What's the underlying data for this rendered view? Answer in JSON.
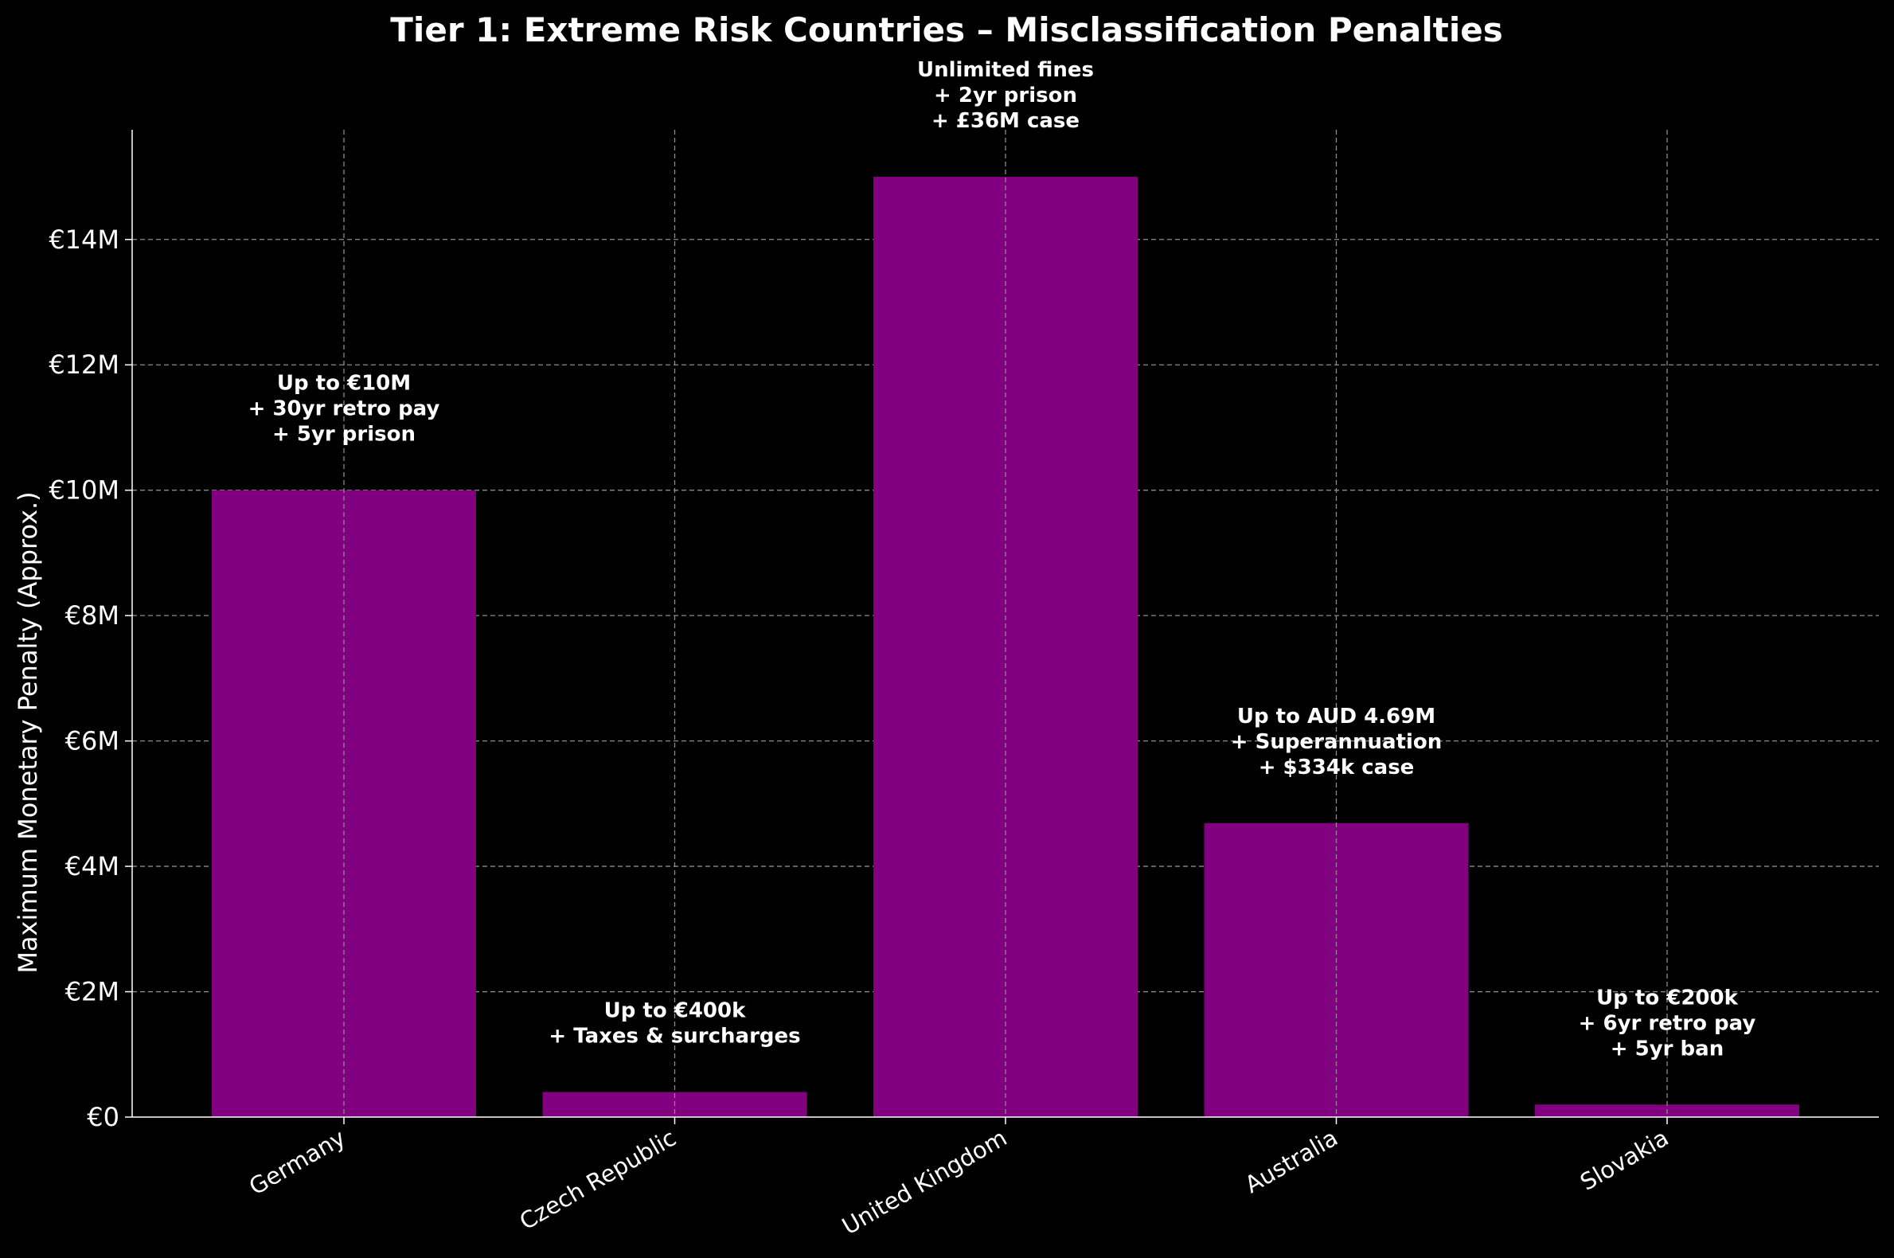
{
  "chart_data": {
    "type": "bar",
    "title": "Tier 1: Extreme Risk Countries – Misclassification Penalties",
    "xlabel": "",
    "ylabel": "Maximum Monetary Penalty (Approx.)",
    "categories": [
      "Germany",
      "Czech Republic",
      "United Kingdom",
      "Australia",
      "Slovakia"
    ],
    "values": [
      10000000,
      400000,
      15000000,
      4690000,
      200000
    ],
    "annotations": [
      [
        "Up to €10M",
        "+ 30yr retro pay",
        "+ 5yr prison"
      ],
      [
        "Up to €400k",
        "+ Taxes & surcharges"
      ],
      [
        "Unlimited fines",
        "+ 2yr prison",
        "+ £36M case"
      ],
      [
        "Up to AUD 4.69M",
        "+ Superannuation",
        "+ $334k case"
      ],
      [
        "Up to €200k",
        "+ 6yr retro pay",
        "+ 5yr ban"
      ]
    ],
    "ylim": [
      0,
      15750000
    ],
    "yticks": [
      0,
      2000000,
      4000000,
      6000000,
      8000000,
      10000000,
      12000000,
      14000000
    ],
    "ytick_labels": [
      "€0",
      "€2M",
      "€4M",
      "€6M",
      "€8M",
      "€10M",
      "€12M",
      "€14M"
    ],
    "grid": true,
    "bar_color": "#800080",
    "background_color": "#000000",
    "text_color": "#ffffff",
    "grid_color": "#8c8c8c"
  }
}
